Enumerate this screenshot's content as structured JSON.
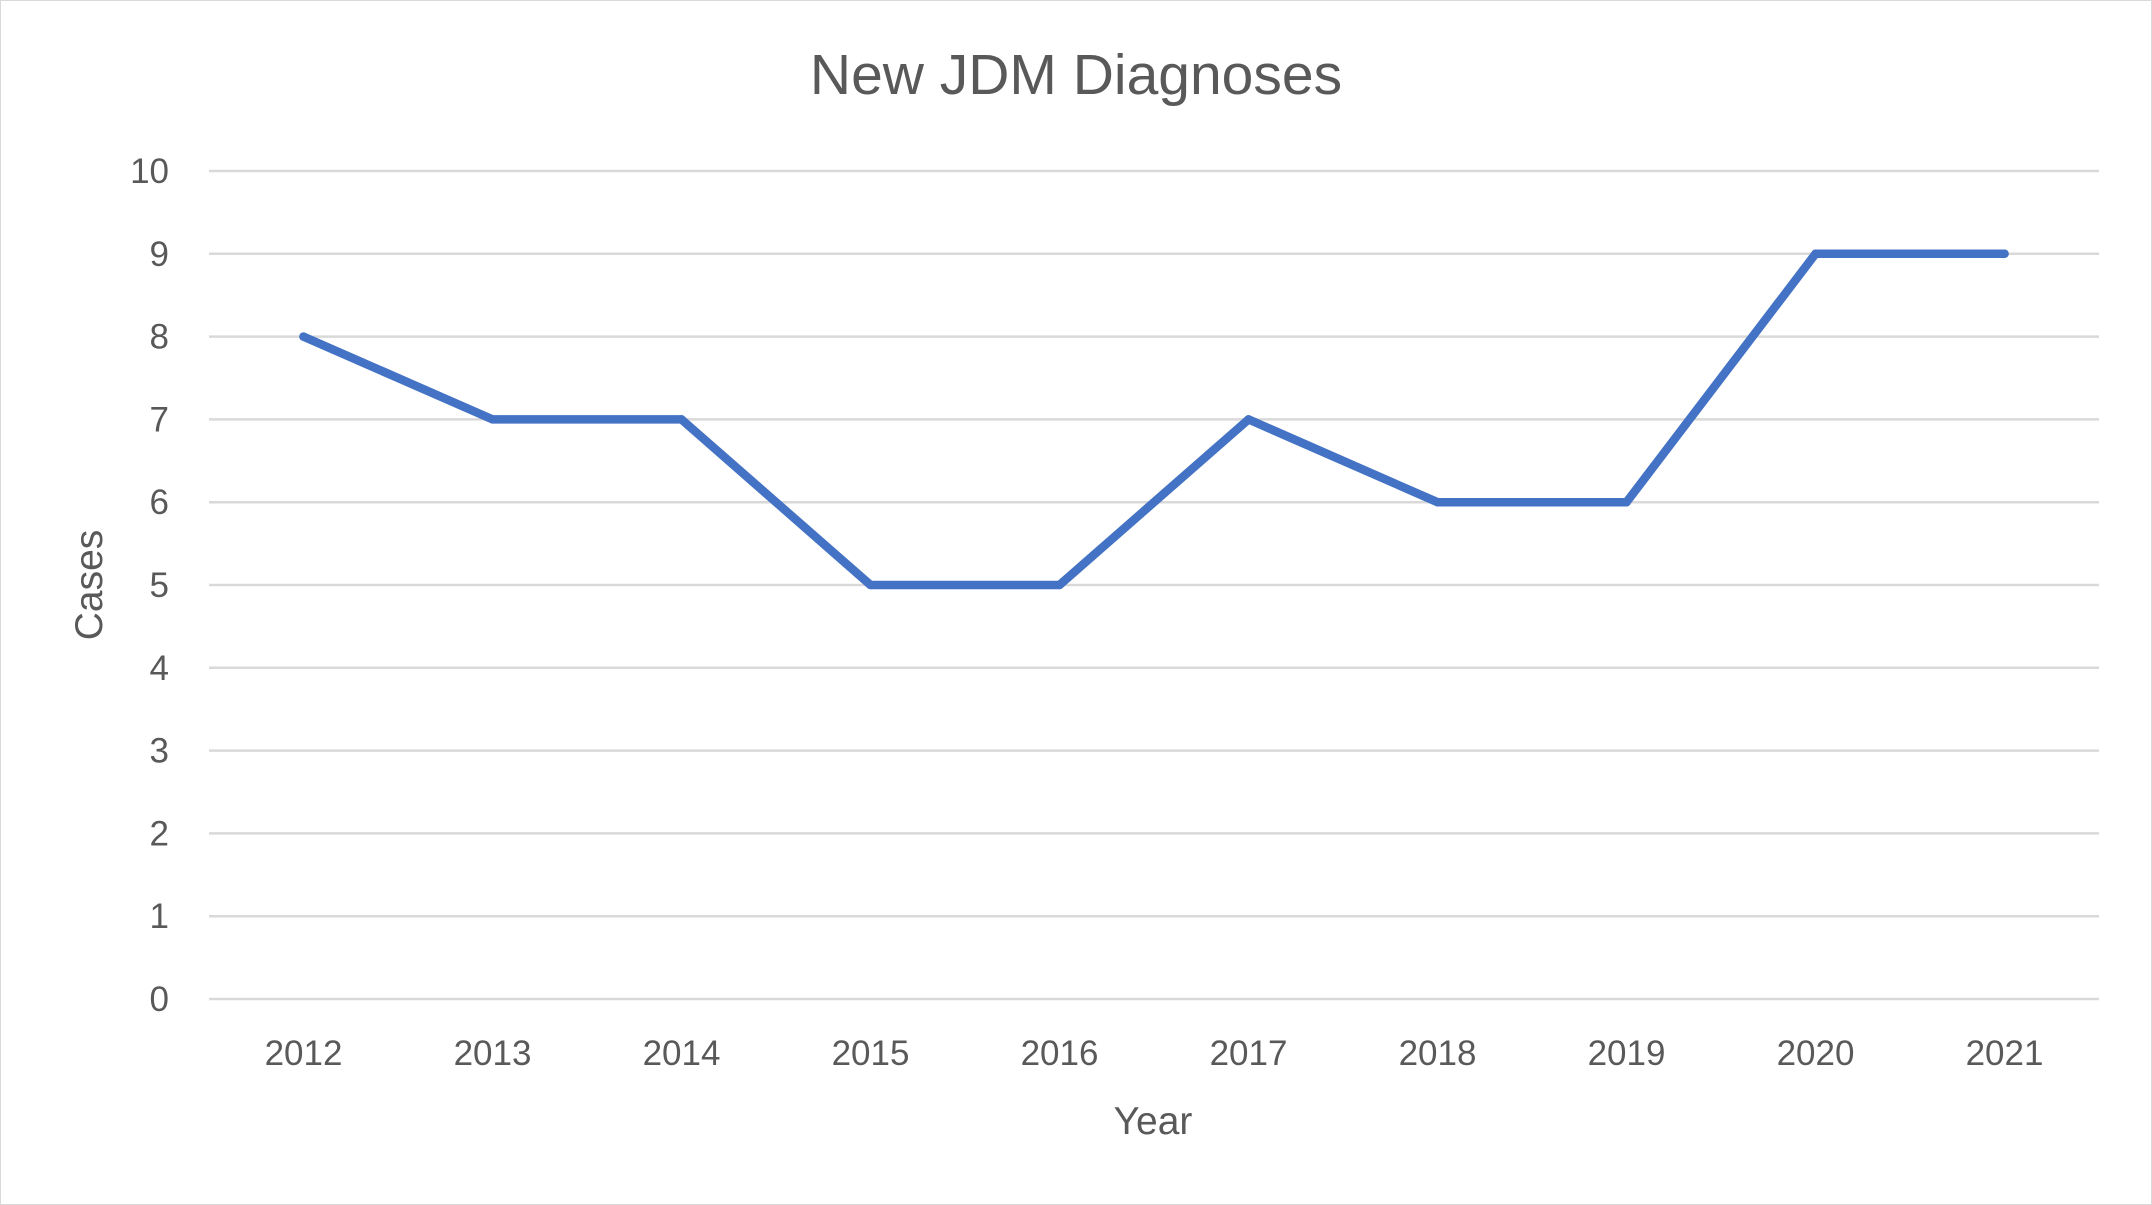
{
  "chart_data": {
    "type": "line",
    "title": "New JDM Diagnoses",
    "xlabel": "Year",
    "ylabel": "Cases",
    "categories": [
      "2012",
      "2013",
      "2014",
      "2015",
      "2016",
      "2017",
      "2018",
      "2019",
      "2020",
      "2021"
    ],
    "series": [
      {
        "values": [
          8,
          7,
          7,
          5,
          5,
          7,
          6,
          6,
          9,
          9
        ],
        "color": "#4472c4"
      }
    ],
    "ylim": [
      0,
      10
    ],
    "yticks": [
      "0",
      "1",
      "2",
      "3",
      "4",
      "5",
      "6",
      "7",
      "8",
      "9",
      "10"
    ],
    "grid": true,
    "legend": "none"
  }
}
